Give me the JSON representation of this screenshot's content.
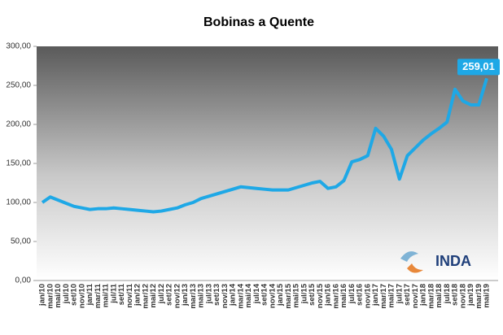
{
  "chart_data": {
    "type": "line",
    "title": "Bobinas  a Quente",
    "logo_text": "INDA",
    "categories": [
      "jan/10",
      "mar/10",
      "mai/10",
      "jul/10",
      "set/10",
      "nov/10",
      "jan/11",
      "mar/11",
      "mai/11",
      "jul/11",
      "set/11",
      "nov/11",
      "jan/12",
      "mar/12",
      "mai/12",
      "jul/12",
      "set/12",
      "nov/12",
      "jan/13",
      "mar/13",
      "mai/13",
      "jul/13",
      "set/13",
      "nov/13",
      "jan/14",
      "mar/14",
      "mai/14",
      "jul/14",
      "set/14",
      "nov/14",
      "jan/15",
      "mar/15",
      "mai/15",
      "jul/15",
      "set/15",
      "nov/15",
      "jan/16",
      "mar/16",
      "mai/16",
      "jul/16",
      "set/16",
      "nov/16",
      "jan/17",
      "mar/17",
      "mai/17",
      "jul/17",
      "set/17",
      "nov/17",
      "jan/18",
      "mar/18",
      "mai/18",
      "jul/18",
      "set/18",
      "nov/18",
      "jan/19",
      "mar/19",
      "mai/19"
    ],
    "values": [
      100,
      107,
      103,
      99,
      95,
      93,
      91,
      92,
      92,
      93,
      92,
      91,
      90,
      89,
      88,
      89,
      91,
      93,
      97,
      100,
      105,
      108,
      111,
      114,
      117,
      120,
      119,
      118,
      117,
      116,
      116,
      116,
      119,
      122,
      125,
      127,
      118,
      120,
      128,
      152,
      155,
      160,
      195,
      185,
      168,
      130,
      160,
      170,
      180,
      188,
      195,
      203,
      245,
      230,
      225,
      225,
      259.01
    ],
    "value_labels": [
      null,
      null,
      null,
      null,
      null,
      null,
      null,
      null,
      null,
      null,
      null,
      null,
      null,
      null,
      null,
      null,
      null,
      null,
      null,
      null,
      null,
      null,
      null,
      null,
      null,
      null,
      null,
      null,
      null,
      null,
      null,
      null,
      null,
      null,
      null,
      null,
      null,
      null,
      null,
      null,
      null,
      null,
      null,
      null,
      null,
      null,
      null,
      null,
      null,
      null,
      null,
      null,
      null,
      null,
      null,
      null,
      "259,01"
    ],
    "color": "#1ea8e6",
    "ylim": [
      0,
      300
    ],
    "yticks": [
      {
        "value": 0,
        "label": "0,00"
      },
      {
        "value": 50,
        "label": "50,00"
      },
      {
        "value": 100,
        "label": "100,00"
      },
      {
        "value": 150,
        "label": "150,00"
      },
      {
        "value": 200,
        "label": "200,00"
      },
      {
        "value": 250,
        "label": "250,00"
      },
      {
        "value": 300,
        "label": "300,00"
      }
    ]
  }
}
